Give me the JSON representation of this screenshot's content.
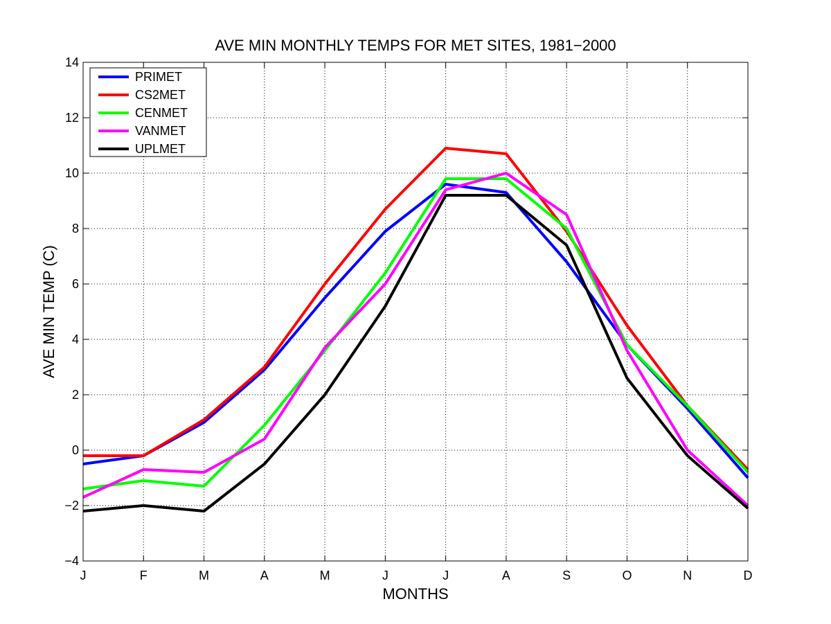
{
  "chart_data": {
    "type": "line",
    "title": "AVE MIN MONTHLY TEMPS FOR MET SITES, 1981−2000",
    "xlabel": "MONTHS",
    "ylabel": "AVE MIN TEMP (C)",
    "categories": [
      "J",
      "F",
      "M",
      "A",
      "M",
      "J",
      "J",
      "A",
      "S",
      "O",
      "N",
      "D"
    ],
    "ylim": [
      -4,
      14
    ],
    "yticks": [
      -4,
      -2,
      0,
      2,
      4,
      6,
      8,
      10,
      12,
      14
    ],
    "grid": true,
    "legend_position": "top-left",
    "series": [
      {
        "name": "PRIMET",
        "color": "#0000ff",
        "values": [
          -0.5,
          -0.2,
          1.0,
          2.9,
          5.5,
          7.9,
          9.6,
          9.3,
          6.8,
          3.8,
          1.5,
          -1.0
        ]
      },
      {
        "name": "CS2MET",
        "color": "#ff0000",
        "values": [
          -0.2,
          -0.2,
          1.1,
          3.0,
          6.0,
          8.7,
          10.9,
          10.7,
          7.9,
          4.5,
          1.6,
          -0.7
        ]
      },
      {
        "name": "CENMET",
        "color": "#00ff00",
        "values": [
          -1.4,
          -1.1,
          -1.3,
          0.9,
          3.6,
          6.4,
          9.8,
          9.8,
          8.0,
          3.8,
          1.6,
          -0.8
        ]
      },
      {
        "name": "VANMET",
        "color": "#ff00ff",
        "values": [
          -1.7,
          -0.7,
          -0.8,
          0.4,
          3.7,
          6.0,
          9.4,
          10.0,
          8.5,
          3.6,
          0.0,
          -2.0
        ]
      },
      {
        "name": "UPLMET",
        "color": "#000000",
        "values": [
          -2.2,
          -2.0,
          -2.2,
          -0.5,
          2.0,
          5.2,
          9.2,
          9.2,
          7.4,
          2.6,
          -0.2,
          -2.1
        ]
      }
    ]
  }
}
